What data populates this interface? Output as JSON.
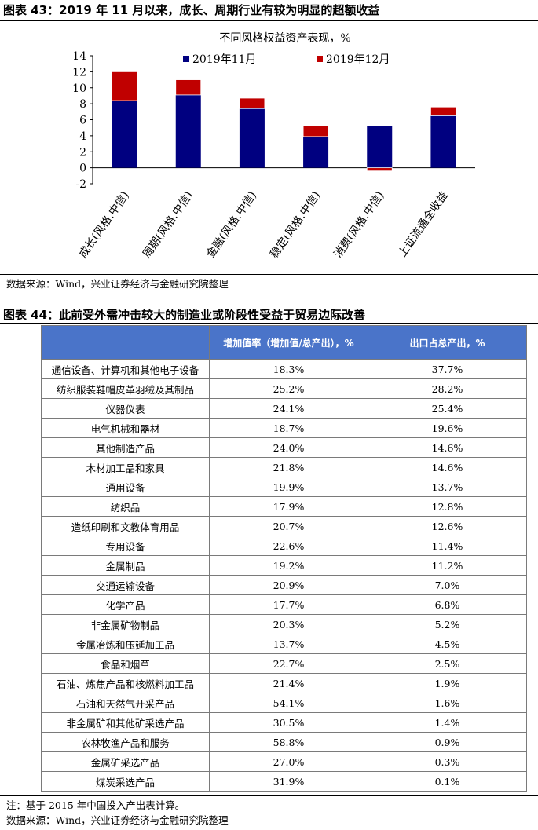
{
  "figure43": {
    "title": "图表 43：2019 年 11 月以来，成长、周期行业有较为明显的超额收益",
    "source": "数据来源：Wind，兴业证券经济与金融研究院整理"
  },
  "chart_data": {
    "type": "bar",
    "stacked": true,
    "title": "不同风格权益资产表现，%",
    "xlabel": "",
    "ylabel": "",
    "categories": [
      "成长(风格.中信)",
      "周期(风格.中信)",
      "金融(风格.中信)",
      "稳定(风格.中信)",
      "消费(风格.中信)",
      "上证流通全收益"
    ],
    "series": [
      {
        "name": "2019年11月",
        "color": "#000080",
        "values": [
          8.4,
          9.1,
          7.4,
          3.9,
          5.2,
          6.5
        ]
      },
      {
        "name": "2019年12月",
        "color": "#c00000",
        "values": [
          3.6,
          1.9,
          1.3,
          1.4,
          -0.4,
          1.1
        ]
      }
    ],
    "ylim": [
      -2,
      14
    ],
    "yticks": [
      -2,
      0,
      2,
      4,
      6,
      8,
      10,
      12,
      14
    ],
    "grid": false,
    "legend_position": "top-center"
  },
  "figure44": {
    "title": "图表 44：此前受外需冲击较大的制造业或阶段性受益于贸易边际改善",
    "headers": [
      "",
      "增加值率（增加值/总产出），%",
      "出口占总产出，%"
    ],
    "rows": [
      [
        "通信设备、计算机和其他电子设备",
        "18.3%",
        "37.7%"
      ],
      [
        "纺织服装鞋帽皮革羽绒及其制品",
        "25.2%",
        "28.2%"
      ],
      [
        "仪器仪表",
        "24.1%",
        "25.4%"
      ],
      [
        "电气机械和器材",
        "18.7%",
        "19.6%"
      ],
      [
        "其他制造产品",
        "24.0%",
        "14.6%"
      ],
      [
        "木材加工品和家具",
        "21.8%",
        "14.6%"
      ],
      [
        "通用设备",
        "19.9%",
        "13.7%"
      ],
      [
        "纺织品",
        "17.9%",
        "12.8%"
      ],
      [
        "造纸印刷和文教体育用品",
        "20.7%",
        "12.6%"
      ],
      [
        "专用设备",
        "22.6%",
        "11.4%"
      ],
      [
        "金属制品",
        "19.2%",
        "11.2%"
      ],
      [
        "交通运输设备",
        "20.9%",
        "7.0%"
      ],
      [
        "化学产品",
        "17.7%",
        "6.8%"
      ],
      [
        "非金属矿物制品",
        "20.3%",
        "5.2%"
      ],
      [
        "金属冶炼和压延加工品",
        "13.7%",
        "4.5%"
      ],
      [
        "食品和烟草",
        "22.7%",
        "2.5%"
      ],
      [
        "石油、炼焦产品和核燃料加工品",
        "21.4%",
        "1.9%"
      ],
      [
        "石油和天然气开采产品",
        "54.1%",
        "1.6%"
      ],
      [
        "非金属矿和其他矿采选产品",
        "30.5%",
        "1.4%"
      ],
      [
        "农林牧渔产品和服务",
        "58.8%",
        "0.9%"
      ],
      [
        "金属矿采选产品",
        "27.0%",
        "0.3%"
      ],
      [
        "煤炭采选产品",
        "31.9%",
        "0.1%"
      ]
    ],
    "note": "注：基于 2015 年中国投入产出表计算。",
    "source": "数据来源：Wind，兴业证券经济与金融研究院整理"
  },
  "colors": {
    "header_bg": "#4a74c9",
    "series1": "#000080",
    "series2": "#c00000"
  }
}
